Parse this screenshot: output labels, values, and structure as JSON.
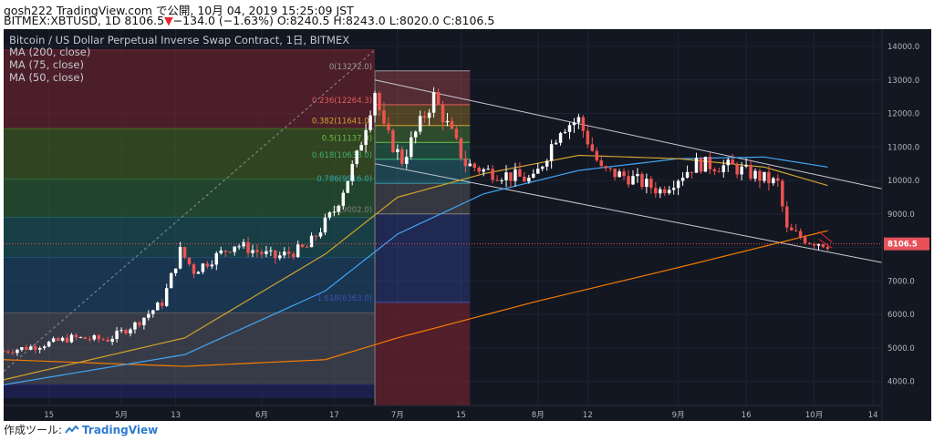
{
  "header": {
    "line1": "gosh222 TradingView.com で公開, 10月 04, 2019 15:25:09 JST",
    "symbol": "BITMEX:XBTUSD, 1D 8106.5",
    "arrow": "▼",
    "change": "−134.0 (−1.63%)",
    "ohlc": "O:8240.5 H:8243.0 L:8020.0 C:8106.5"
  },
  "legend": {
    "title": "Bitcoin / US Dollar Perpetual Inverse Swap Contract, 1日, BITMEX",
    "ma200": "MA (200, close)",
    "ma75": "MA (75, close)",
    "ma50": "MA (50, close)"
  },
  "footer": {
    "label": "作成ツール:",
    "brand": "TradingView"
  },
  "colors": {
    "background": "#131722",
    "up": "#ffffff",
    "down": "#ef5350",
    "ma200": "#f57c00",
    "ma75": "#42a5f5",
    "ma50": "#d4a32b",
    "trendline": "#c8cbd2",
    "price_label": "#e8515a"
  },
  "chart_data": {
    "type": "candlestick",
    "y_range": [
      3500,
      14300
    ],
    "y_ticks": [
      4000,
      5000,
      6000,
      7000,
      8000,
      9000,
      10000,
      11000,
      12000,
      13000,
      14000
    ],
    "x_range": [
      "2019-04-05",
      "2019-10-16"
    ],
    "x_ticks": [
      {
        "date": "2019-04-15",
        "label": "15"
      },
      {
        "date": "2019-05-01",
        "label": "5月"
      },
      {
        "date": "2019-05-13",
        "label": "13"
      },
      {
        "date": "2019-06-01",
        "label": "6月"
      },
      {
        "date": "2019-06-17",
        "label": "17"
      },
      {
        "date": "2019-07-01",
        "label": "7月"
      },
      {
        "date": "2019-07-15",
        "label": "15"
      },
      {
        "date": "2019-08-01",
        "label": "8月"
      },
      {
        "date": "2019-08-12",
        "label": "12"
      },
      {
        "date": "2019-09-01",
        "label": "9月"
      },
      {
        "date": "2019-09-16",
        "label": "16"
      },
      {
        "date": "2019-10-01",
        "label": "10月"
      },
      {
        "date": "2019-10-14",
        "label": "14"
      }
    ],
    "last_price": {
      "value": 8106.5,
      "label": "8106.5"
    },
    "price_anchors": [
      [
        "2019-04-05",
        4900
      ],
      [
        "2019-04-12",
        5050
      ],
      [
        "2019-04-20",
        5300
      ],
      [
        "2019-04-28",
        5250
      ],
      [
        "2019-05-04",
        5700
      ],
      [
        "2019-05-10",
        6350
      ],
      [
        "2019-05-14",
        7900
      ],
      [
        "2019-05-17",
        7300
      ],
      [
        "2019-05-26",
        8100
      ],
      [
        "2019-06-04",
        7700
      ],
      [
        "2019-06-11",
        8000
      ],
      [
        "2019-06-17",
        9100
      ],
      [
        "2019-06-22",
        10700
      ],
      [
        "2019-06-26",
        12700
      ],
      [
        "2019-06-28",
        11500
      ],
      [
        "2019-07-02",
        10600
      ],
      [
        "2019-07-09",
        12500
      ],
      [
        "2019-07-16",
        10500
      ],
      [
        "2019-07-20",
        10300
      ],
      [
        "2019-07-31",
        10000
      ],
      [
        "2019-08-06",
        11600
      ],
      [
        "2019-08-10",
        11800
      ],
      [
        "2019-08-15",
        10300
      ],
      [
        "2019-08-21",
        10100
      ],
      [
        "2019-08-28",
        9700
      ],
      [
        "2019-09-05",
        10500
      ],
      [
        "2019-09-13",
        10400
      ],
      [
        "2019-09-23",
        9900
      ],
      [
        "2019-09-25",
        8500
      ],
      [
        "2019-09-30",
        8200
      ],
      [
        "2019-10-04",
        8106.5
      ]
    ],
    "moving_averages": [
      {
        "name": "MA (200, close)",
        "color": "#f57c00",
        "points": [
          [
            "2019-04-05",
            4650
          ],
          [
            "2019-05-15",
            4450
          ],
          [
            "2019-06-15",
            4650
          ],
          [
            "2019-07-01",
            5300
          ],
          [
            "2019-08-01",
            6400
          ],
          [
            "2019-09-01",
            7400
          ],
          [
            "2019-10-04",
            8500
          ]
        ]
      },
      {
        "name": "MA (75, close)",
        "color": "#42a5f5",
        "points": [
          [
            "2019-04-05",
            3900
          ],
          [
            "2019-05-15",
            4800
          ],
          [
            "2019-06-15",
            6700
          ],
          [
            "2019-07-01",
            8400
          ],
          [
            "2019-07-20",
            9600
          ],
          [
            "2019-08-10",
            10300
          ],
          [
            "2019-09-01",
            10650
          ],
          [
            "2019-09-20",
            10700
          ],
          [
            "2019-10-04",
            10400
          ]
        ]
      },
      {
        "name": "MA (50, close)",
        "color": "#d4a32b",
        "points": [
          [
            "2019-04-05",
            4050
          ],
          [
            "2019-05-15",
            5300
          ],
          [
            "2019-06-15",
            7800
          ],
          [
            "2019-07-01",
            9500
          ],
          [
            "2019-07-20",
            10200
          ],
          [
            "2019-08-10",
            10750
          ],
          [
            "2019-09-01",
            10650
          ],
          [
            "2019-09-20",
            10400
          ],
          [
            "2019-10-04",
            9850
          ]
        ]
      }
    ],
    "trendlines": [
      {
        "name": "upper-trend",
        "from": [
          "2019-06-26",
          13000
        ],
        "to": [
          "2019-10-16",
          9750
        ]
      },
      {
        "name": "lower-trend",
        "from": [
          "2019-06-26",
          10500
        ],
        "to": [
          "2019-10-16",
          7550
        ]
      },
      {
        "name": "dotted-diagonal",
        "from": [
          "2019-04-05",
          4300
        ],
        "to": [
          "2019-06-26",
          13900
        ],
        "dashed": true
      }
    ],
    "fib_retracement": {
      "from_date": "2019-06-26",
      "to_date": "2019-07-17",
      "levels": [
        {
          "ratio": "0",
          "price": 13272.0,
          "label": "0(13272.0)"
        },
        {
          "ratio": "0.236",
          "price": 12264.3,
          "label": "0.236(12264.3)"
        },
        {
          "ratio": "0.382",
          "price": 11641.0,
          "label": "0.382(11641.0)"
        },
        {
          "ratio": "0.5",
          "price": 11137.0,
          "label": "0.5(11137.0)"
        },
        {
          "ratio": "0.618",
          "price": 10633.0,
          "label": "0.618(10633.0)"
        },
        {
          "ratio": "0.786",
          "price": 9916.0,
          "label": "0.786(9916.0)"
        },
        {
          "ratio": "1",
          "price": 9002.0,
          "label": "1(9002.0)"
        },
        {
          "ratio": "1.618",
          "price": 6363.0,
          "label": "1.618(6363.0)"
        }
      ]
    },
    "fib_bands_left": [
      {
        "top": 13900,
        "bottom": 11550,
        "color": "#7b2430"
      },
      {
        "top": 11550,
        "bottom": 10050,
        "color": "#4a6a20"
      },
      {
        "top": 10050,
        "bottom": 8900,
        "color": "#2f6a34"
      },
      {
        "top": 8900,
        "bottom": 7700,
        "color": "#1d5f62"
      },
      {
        "top": 7700,
        "bottom": 6050,
        "color": "#1f4e74"
      },
      {
        "top": 6050,
        "bottom": 3900,
        "color": "#555a66"
      },
      {
        "top": 3900,
        "bottom": 3500,
        "color": "#27266e"
      }
    ],
    "fib_colors": [
      "#9a9a9a",
      "#e05a5a",
      "#d4a32b",
      "#6abd45",
      "#3bb273",
      "#35a2b0",
      "#808080",
      "#3f51b5"
    ]
  }
}
